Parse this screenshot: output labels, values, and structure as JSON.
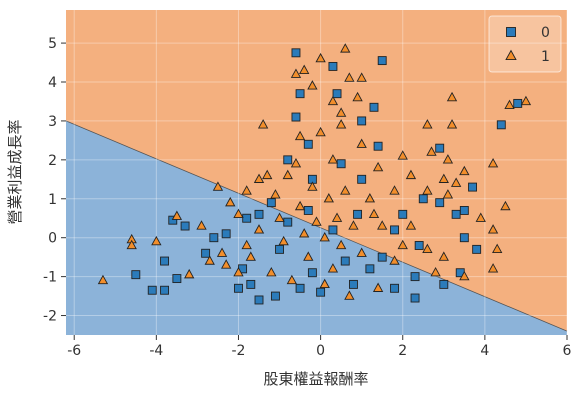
{
  "chart_data": {
    "type": "scatter",
    "xlabel": "股東權益報酬率",
    "ylabel": "營業利益成長率",
    "xlim": [
      -6.2,
      6
    ],
    "ylim": [
      -2.5,
      5.85
    ],
    "xticks": [
      -6,
      -4,
      -2,
      0,
      2,
      4,
      6
    ],
    "yticks": [
      -2,
      -1,
      0,
      1,
      2,
      3,
      4,
      5
    ],
    "grid": true,
    "legend": "upper right",
    "regions": {
      "below": "#8cb3d9",
      "above": "#f4b07f"
    },
    "boundary": {
      "x": [
        -6.2,
        6
      ],
      "y": [
        3.0,
        -2.4
      ]
    },
    "series": [
      {
        "name": "0",
        "marker": "square",
        "color": "#2b7bba",
        "x": [
          -0.6,
          1.5,
          0.3,
          -0.5,
          4.4,
          4.8,
          1.3,
          -0.6,
          1.4,
          2.9,
          2.9,
          3.5,
          3.3,
          3.7,
          2.5,
          -3.6,
          -3.8,
          -4.5,
          -4.1,
          -3.8,
          -3.5,
          -2.8,
          -2.6,
          -3.3,
          -2.3,
          -1.8,
          -1.5,
          -0.2,
          0.5,
          -0.3,
          1.0,
          2.0,
          2.4,
          2.3,
          3.0,
          3.4,
          1.8,
          2.3,
          -1.9,
          -1.7,
          -1.5,
          -0.5,
          0.0,
          0.8,
          1.2,
          1.5,
          0.3,
          -0.8,
          -1.0,
          0.6,
          -0.2,
          1.8,
          -1.2,
          0.9,
          -0.3,
          3.8,
          -2.0,
          -1.1,
          0.4,
          1.0,
          -0.8,
          3.5
        ],
        "y": [
          4.75,
          4.55,
          4.4,
          3.7,
          2.9,
          3.45,
          3.35,
          3.1,
          2.35,
          2.3,
          0.9,
          0.7,
          0.6,
          1.3,
          1.0,
          0.45,
          -0.6,
          -0.95,
          -1.35,
          -1.35,
          -1.05,
          -0.4,
          0.0,
          0.3,
          0.1,
          0.5,
          0.6,
          1.5,
          1.9,
          2.4,
          1.5,
          0.6,
          -0.2,
          -1.0,
          -1.2,
          -0.9,
          -1.3,
          -1.55,
          -0.8,
          -1.2,
          -1.6,
          -1.3,
          -1.4,
          -1.2,
          -0.8,
          -0.5,
          0.2,
          0.4,
          -0.3,
          -0.6,
          -0.9,
          0.2,
          0.9,
          0.6,
          0.7,
          -0.3,
          -1.3,
          -1.5,
          3.7,
          3.0,
          2.0,
          0.0
        ]
      },
      {
        "name": "1",
        "marker": "triangle",
        "color": "#f28e2b",
        "x": [
          -5.3,
          -4.6,
          -4.6,
          -4.0,
          -3.5,
          -3.2,
          -2.3,
          -2.0,
          0.6,
          0.0,
          -0.4,
          -0.6,
          0.7,
          1.0,
          -0.2,
          0.3,
          0.5,
          0.9,
          0.5,
          -1.4,
          -0.5,
          2.6,
          3.2,
          4.6,
          5.0,
          3.2,
          2.7,
          3.1,
          3.5,
          4.2,
          3.0,
          3.3,
          2.2,
          2.0,
          1.4,
          2.6,
          3.1,
          -1.5,
          -1.3,
          -1.8,
          -1.1,
          -2.2,
          -0.8,
          0.3,
          -0.2,
          0.6,
          1.2,
          1.8,
          -0.5,
          0.8,
          -1.5,
          -0.9,
          0.1,
          0.4,
          1.5,
          2.2,
          2.6,
          3.0,
          3.5,
          4.3,
          4.5,
          3.9,
          -0.3,
          0.3,
          1.0,
          1.8,
          -1.7,
          -1.2,
          -0.7,
          0.1,
          0.7,
          1.4,
          -2.7,
          -2.4,
          -2.9,
          -0.1,
          0.5,
          1.3,
          -1.0,
          -0.4,
          2.0,
          -1.8,
          0.2,
          -0.6,
          1.0,
          0.0,
          -2.5,
          -2.0,
          4.2,
          4.2,
          2.8
        ],
        "y": [
          -1.1,
          -0.05,
          -0.2,
          -0.1,
          0.55,
          -0.95,
          -0.7,
          -0.9,
          4.85,
          4.6,
          4.3,
          4.2,
          4.1,
          4.1,
          3.9,
          3.5,
          3.2,
          3.6,
          2.9,
          2.9,
          2.6,
          2.9,
          2.9,
          3.4,
          3.5,
          3.6,
          2.2,
          2.0,
          1.7,
          1.9,
          1.5,
          1.4,
          1.6,
          2.1,
          1.8,
          1.2,
          1.1,
          1.5,
          1.6,
          1.2,
          1.1,
          0.9,
          1.6,
          2.0,
          1.3,
          1.2,
          1.0,
          1.2,
          0.8,
          0.3,
          0.2,
          -0.1,
          0.0,
          0.5,
          0.3,
          0.3,
          -0.3,
          -0.5,
          -1.0,
          -0.3,
          0.8,
          0.5,
          -0.5,
          -0.8,
          -0.4,
          -0.6,
          -0.5,
          -0.9,
          -1.1,
          -1.2,
          -1.5,
          -1.3,
          -0.6,
          -0.4,
          0.3,
          0.4,
          -0.2,
          0.6,
          0.5,
          0.1,
          -0.2,
          -0.2,
          1.0,
          1.9,
          2.4,
          2.7,
          1.3,
          0.6,
          0.2,
          -0.8,
          -0.9
        ]
      }
    ]
  }
}
